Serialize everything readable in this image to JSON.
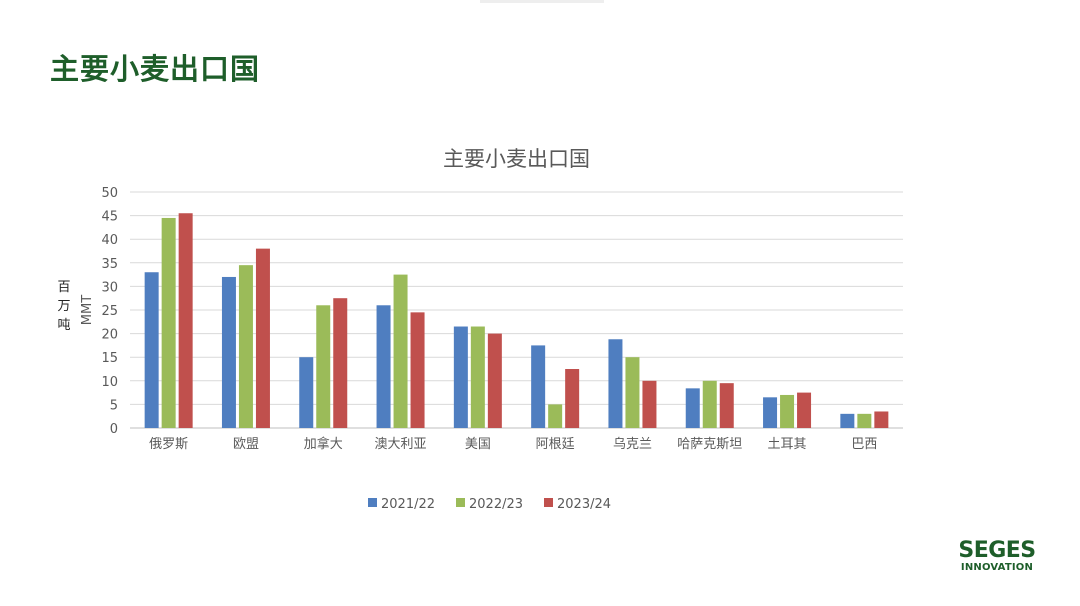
{
  "slide": {
    "title": "主要小麦出口国"
  },
  "unit_label": "百万吨",
  "logo": {
    "main": "SEGES",
    "sub": "INNOVATION"
  },
  "chart_data": {
    "type": "bar",
    "title": "主要小麦出口国",
    "ylabel": "MMT",
    "xlabel": "",
    "ylim": [
      0,
      50
    ],
    "yticks": [
      0,
      5,
      10,
      15,
      20,
      25,
      30,
      35,
      40,
      45,
      50
    ],
    "grid": true,
    "legend_position": "bottom",
    "categories": [
      "俄罗斯",
      "欧盟",
      "加拿大",
      "澳大利亚",
      "美国",
      "阿根廷",
      "乌克兰",
      "哈萨克斯坦",
      "土耳其",
      "巴西"
    ],
    "series": [
      {
        "name": "2021/22",
        "color": "#4f7ec0",
        "values": [
          33,
          32,
          15,
          26,
          21.5,
          17.5,
          18.8,
          8.4,
          6.5,
          3
        ]
      },
      {
        "name": "2022/23",
        "color": "#9bbb59",
        "values": [
          44.5,
          34.5,
          26,
          32.5,
          21.5,
          5,
          15,
          10,
          7,
          3
        ]
      },
      {
        "name": "2023/24",
        "color": "#c0504d",
        "values": [
          45.5,
          38,
          27.5,
          24.5,
          20,
          12.5,
          10,
          9.5,
          7.5,
          3.5
        ]
      }
    ]
  }
}
